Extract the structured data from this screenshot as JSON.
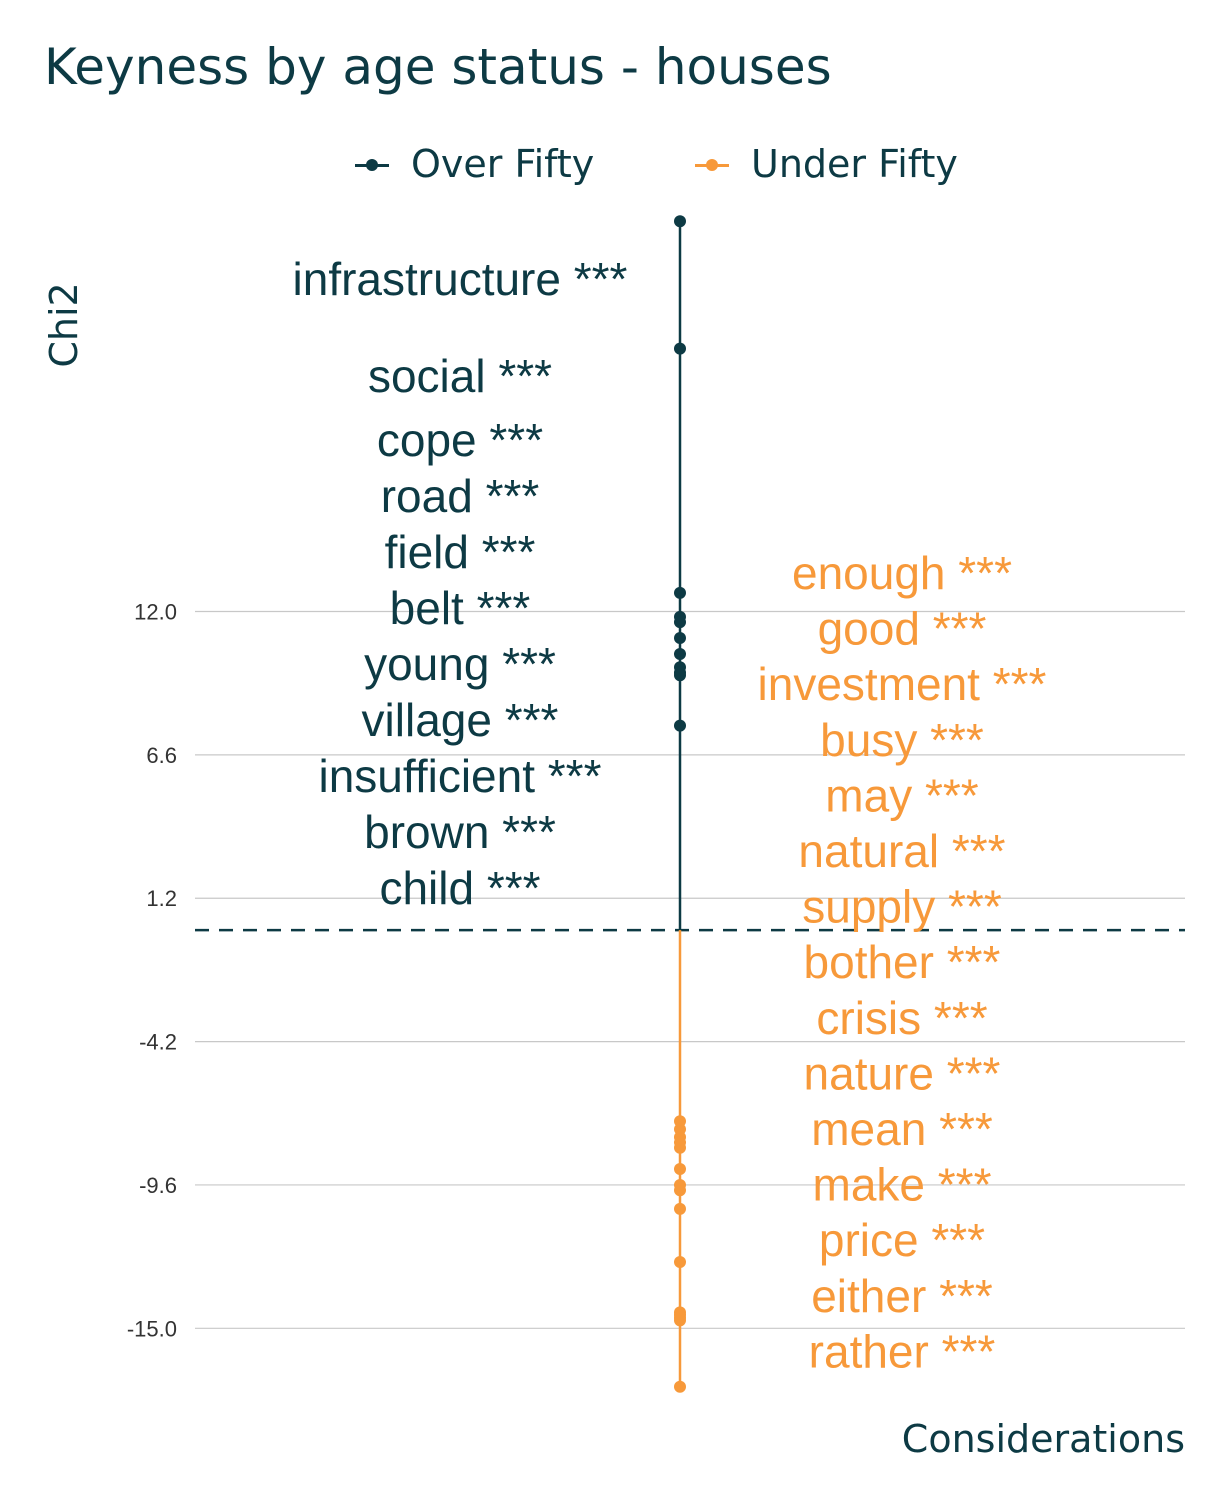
{
  "title": "Keyness by age status - houses",
  "legend": {
    "items": [
      {
        "label": "Over Fifty",
        "color": "#0d3a44"
      },
      {
        "label": "Under Fifty",
        "color": "#f7993a"
      }
    ]
  },
  "chart_data": {
    "type": "scatter",
    "title": "Keyness by age status - houses",
    "xlabel": "Considerations",
    "ylabel": "Chi2",
    "y_ticks": [
      "12.0",
      "6.6",
      "1.2",
      "-4.2",
      "-9.6",
      "-15.0"
    ],
    "ylim": [
      -17.7,
      27.5
    ],
    "reference_line": 0,
    "grid": "horizontal",
    "legend_position": "top",
    "significance_marker": "***",
    "series": [
      {
        "name": "Over Fifty",
        "color": "#0d3a44",
        "points": [
          {
            "word": "infrastructure",
            "label": "infrastructure ***",
            "value": 26.7
          },
          {
            "word": "social",
            "label": "social ***",
            "value": 21.9
          },
          {
            "word": "cope",
            "label": "cope ***",
            "value": 12.7
          },
          {
            "word": "road",
            "label": "road ***",
            "value": 11.8
          },
          {
            "word": "field",
            "label": "field ***",
            "value": 11.6
          },
          {
            "word": "belt",
            "label": "belt ***",
            "value": 11.0
          },
          {
            "word": "young",
            "label": "young ***",
            "value": 10.4
          },
          {
            "word": "village",
            "label": "village ***",
            "value": 9.9
          },
          {
            "word": "insufficient",
            "label": "insufficient ***",
            "value": 9.7
          },
          {
            "word": "brown",
            "label": "brown ***",
            "value": 9.6
          },
          {
            "word": "child",
            "label": "child ***",
            "value": 7.7
          }
        ]
      },
      {
        "name": "Under Fifty",
        "color": "#f7993a",
        "points": [
          {
            "word": "enough",
            "label": "enough ***",
            "value": -7.2
          },
          {
            "word": "good",
            "label": "good ***",
            "value": -7.5
          },
          {
            "word": "investment",
            "label": "investment ***",
            "value": -7.8
          },
          {
            "word": "busy",
            "label": "busy ***",
            "value": -8.0
          },
          {
            "word": "may",
            "label": "may ***",
            "value": -8.2
          },
          {
            "word": "natural",
            "label": "natural ***",
            "value": -9.0
          },
          {
            "word": "supply",
            "label": "supply ***",
            "value": -9.6
          },
          {
            "word": "bother",
            "label": "bother ***",
            "value": -9.8
          },
          {
            "word": "crisis",
            "label": "crisis ***",
            "value": -10.5
          },
          {
            "word": "nature",
            "label": "nature ***",
            "value": -12.5
          },
          {
            "word": "mean",
            "label": "mean ***",
            "value": -14.4
          },
          {
            "word": "make",
            "label": "make ***",
            "value": -14.5
          },
          {
            "word": "price",
            "label": "price ***",
            "value": -14.6
          },
          {
            "word": "either",
            "label": "either ***",
            "value": -14.7
          },
          {
            "word": "rather",
            "label": "rather ***",
            "value": -17.2
          }
        ]
      }
    ]
  }
}
